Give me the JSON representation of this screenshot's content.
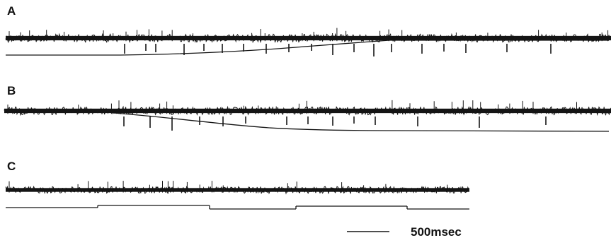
{
  "panels": [
    {
      "label": "A"
    },
    {
      "label": "B"
    },
    {
      "label": "C"
    }
  ],
  "scale_bar": {
    "label": "500msec"
  },
  "colors": {
    "trace": "#151515",
    "background": "#ffffff"
  }
}
